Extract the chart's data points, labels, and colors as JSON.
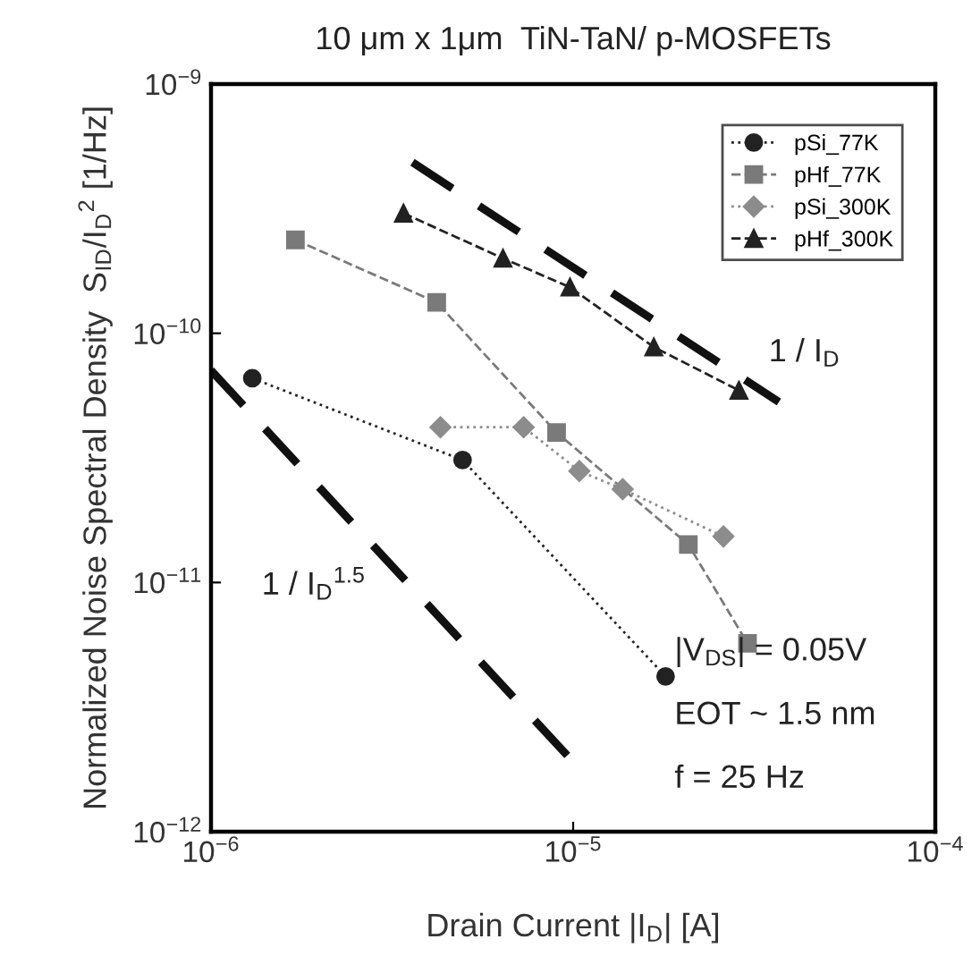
{
  "chart_data": {
    "type": "line",
    "title": "10 μm x 1μm  TiN-TaN/ p-MOSFETs",
    "xlabel": "Drain Current |I$_{D}$| [A]",
    "ylabel": "Normalized Noise Spectral Density  S$_{ID}$/I$_{D}$$^{2}$ [1/Hz]",
    "log": "xy",
    "xlim": [
      1e-06,
      0.0001
    ],
    "ylim": [
      1e-12,
      1e-09
    ],
    "xticks": [
      {
        "value": 1e-06,
        "label": "10$^{−6}$"
      },
      {
        "value": 1e-05,
        "label": "10$^{−5}$"
      },
      {
        "value": 0.0001,
        "label": "10$^{−4}$"
      }
    ],
    "yticks": [
      {
        "value": 1e-12,
        "label": "10$^{−12}$"
      },
      {
        "value": 1e-11,
        "label": "10$^{−11}$"
      },
      {
        "value": 1e-10,
        "label": "10$^{−10}$"
      },
      {
        "value": 1e-09,
        "label": "10$^{−9}$"
      }
    ],
    "legend": "top right",
    "series": [
      {
        "name": "pSi_77K",
        "color": "#222222",
        "marker": "circle",
        "line_style": "dotted",
        "x": [
          1.3e-06,
          4.95e-06,
          1.8e-05
        ],
        "values": [
          6.6e-11,
          3.1e-11,
          4.2e-12
        ]
      },
      {
        "name": "pHf_77K",
        "color": "#7a7a7a",
        "marker": "square",
        "line_style": "dashed",
        "x": [
          1.71e-06,
          4.2e-06,
          9e-06,
          2.08e-05,
          3.03e-05
        ],
        "values": [
          2.37e-10,
          1.33e-10,
          4e-11,
          1.42e-11,
          5.7e-12
        ]
      },
      {
        "name": "pSi_300K",
        "color": "#8c8c8c",
        "marker": "diamond",
        "line_style": "dotted",
        "x": [
          4.3e-06,
          7.3e-06,
          1.04e-05,
          1.37e-05,
          2.6e-05
        ],
        "values": [
          4.2e-11,
          4.2e-11,
          2.8e-11,
          2.37e-11,
          1.53e-11
        ]
      },
      {
        "name": "pHf_300K",
        "color": "#222222",
        "marker": "triangle",
        "line_style": "dashed",
        "x": [
          3.4e-06,
          6.4e-06,
          9.8e-06,
          1.67e-05,
          2.87e-05
        ],
        "values": [
          3.03e-10,
          2e-10,
          1.53e-10,
          8.8e-11,
          5.9e-11
        ]
      },
      {
        "type": "line",
        "color": "#111111",
        "marker": "none",
        "line_style": "dashed",
        "x": [
          3.6e-06,
          3.7e-05
        ],
        "values": [
          4.85e-10,
          5.3e-11
        ]
      },
      {
        "type": "line",
        "color": "#111111",
        "marker": "none",
        "line_style": "dashed",
        "x": [
          1e-06,
          9.7e-06
        ],
        "values": [
          7.1e-11,
          2e-12
        ]
      }
    ],
    "annotations": [
      "1 / I$_{D}$",
      "1 / I$_{D}$$^{1.5}$",
      "|V$_{DS}$| = 0.05V",
      "EOT ~ 1.5 nm",
      "f = 25 Hz"
    ]
  }
}
